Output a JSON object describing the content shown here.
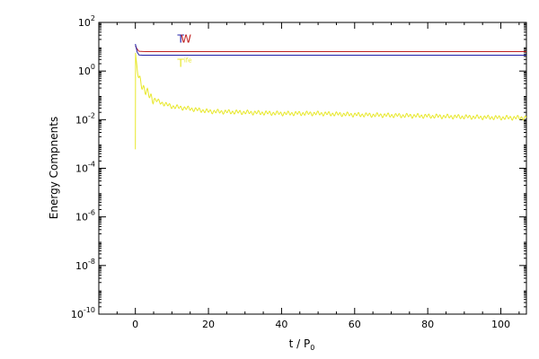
{
  "chart_data": {
    "type": "line",
    "xlabel": "t / P",
    "xlabel_subscript": "0",
    "ylabel": "Energy Compnents",
    "xlim": [
      -10,
      107
    ],
    "ylim": [
      1e-10,
      100
    ],
    "yscale": "log",
    "xticks": [
      0,
      20,
      40,
      60,
      80,
      100
    ],
    "yticks": [
      {
        "value": 100.0,
        "base": "10",
        "exp": "2"
      },
      {
        "value": 1.0,
        "base": "10",
        "exp": "0"
      },
      {
        "value": 0.01,
        "base": "10",
        "exp": "-2"
      },
      {
        "value": 0.0001,
        "base": "10",
        "exp": "-4"
      },
      {
        "value": 1e-06,
        "base": "10",
        "exp": "-6"
      },
      {
        "value": 1e-08,
        "base": "10",
        "exp": "-8"
      },
      {
        "value": 1e-10,
        "base": "10",
        "exp": "-10"
      }
    ],
    "annotations": [
      {
        "text": "T",
        "x": 11.5,
        "y": 15,
        "color": "#1f1fa8"
      },
      {
        "text": "W",
        "x": 12.4,
        "y": 15,
        "color": "#c02020"
      },
      {
        "text": "T",
        "x": 11.5,
        "y": 1.5,
        "color": "#e8e82a",
        "sup": "ife"
      }
    ],
    "series": [
      {
        "color": "#c02020",
        "x": [
          0,
          0.5,
          1,
          2,
          3,
          5,
          10,
          20,
          40,
          60,
          80,
          100,
          107
        ],
        "y": [
          11,
          8,
          6.5,
          6.4,
          6.3,
          6.3,
          6.3,
          6.3,
          6.3,
          6.3,
          6.3,
          6.3,
          6.3
        ]
      },
      {
        "color": "#1f1fa8",
        "x": [
          0,
          0.5,
          1,
          2,
          3,
          5,
          10,
          20,
          40,
          60,
          80,
          100,
          107
        ],
        "y": [
          13,
          6,
          4.6,
          4.5,
          4.5,
          4.5,
          4.5,
          4.5,
          4.5,
          4.5,
          4.5,
          4.5,
          4.5
        ]
      },
      {
        "color": "#e8e82a",
        "x": [
          0,
          0.05,
          0.2,
          0.5,
          1,
          2,
          3,
          5,
          7,
          10,
          15,
          20,
          30,
          40,
          50,
          60,
          70,
          80,
          90,
          100,
          107
        ],
        "y": [
          0.0006,
          5,
          2,
          1.0,
          0.5,
          0.25,
          0.13,
          0.07,
          0.05,
          0.035,
          0.028,
          0.022,
          0.02,
          0.018,
          0.018,
          0.016,
          0.015,
          0.014,
          0.013,
          0.012,
          0.012
        ],
        "oscillation_amplitude": 0.22
      }
    ]
  }
}
